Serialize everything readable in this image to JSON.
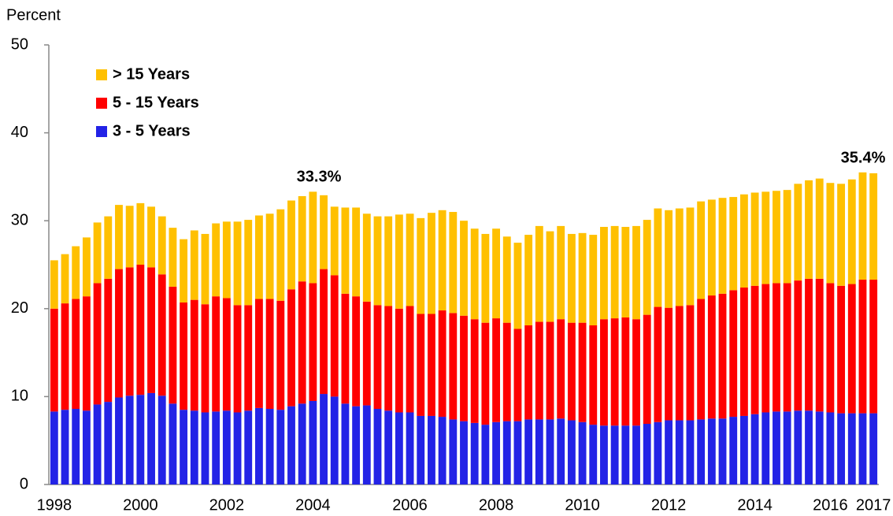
{
  "chart_data": {
    "type": "stacked_bar",
    "y_label": "Percent",
    "annotations": [
      "33.3%",
      "35.4%"
    ],
    "categories": [
      "1998",
      null,
      null,
      null,
      null,
      null,
      null,
      null,
      "2000",
      null,
      null,
      null,
      null,
      null,
      null,
      null,
      "2002",
      null,
      null,
      null,
      null,
      null,
      null,
      null,
      "2004",
      null,
      null,
      null,
      null,
      null,
      null,
      null,
      null,
      "2006",
      null,
      null,
      null,
      null,
      null,
      null,
      null,
      "2008",
      null,
      null,
      null,
      null,
      null,
      null,
      null,
      "2010",
      null,
      null,
      null,
      null,
      null,
      null,
      null,
      "2012",
      null,
      null,
      null,
      null,
      null,
      null,
      null,
      "2014",
      null,
      null,
      null,
      null,
      null,
      null,
      "2016",
      null,
      null,
      null,
      "2017"
    ],
    "series": [
      {
        "name": "3 - 5 Years",
        "color": "#2323e6",
        "values": [
          8.3,
          8.5,
          8.6,
          8.4,
          9.1,
          9.4,
          9.9,
          10.1,
          10.2,
          10.4,
          10.1,
          9.2,
          8.5,
          8.4,
          8.2,
          8.3,
          8.4,
          8.2,
          8.4,
          8.7,
          8.6,
          8.5,
          8.9,
          9.2,
          9.5,
          10.3,
          10.0,
          9.2,
          8.9,
          9.0,
          8.6,
          8.4,
          8.2,
          8.2,
          7.8,
          7.8,
          7.7,
          7.4,
          7.2,
          7.0,
          6.8,
          7.1,
          7.2,
          7.2,
          7.4,
          7.4,
          7.4,
          7.5,
          7.3,
          7.1,
          6.8,
          6.7,
          6.7,
          6.7,
          6.7,
          6.9,
          7.1,
          7.3,
          7.3,
          7.3,
          7.4,
          7.5,
          7.5,
          7.7,
          7.8,
          8.0,
          8.2,
          8.3,
          8.3,
          8.4,
          8.4,
          8.3,
          8.2,
          8.1,
          8.1,
          8.1,
          8.1
        ]
      },
      {
        "name": "5 - 15 Years",
        "color": "#ff0000",
        "values": [
          11.7,
          12.1,
          12.5,
          13.0,
          13.8,
          14.0,
          14.6,
          14.6,
          14.8,
          14.3,
          13.8,
          13.3,
          12.2,
          12.6,
          12.3,
          13.1,
          12.8,
          12.2,
          12.0,
          12.4,
          12.5,
          12.4,
          13.3,
          13.9,
          13.4,
          14.2,
          13.8,
          12.5,
          12.5,
          11.8,
          11.8,
          11.9,
          11.8,
          12.1,
          11.6,
          11.6,
          12.1,
          12.1,
          12.0,
          11.8,
          11.6,
          11.8,
          11.2,
          10.5,
          10.7,
          11.1,
          11.1,
          11.3,
          11.1,
          11.3,
          11.3,
          12.1,
          12.2,
          12.3,
          12.1,
          12.4,
          13.1,
          12.8,
          13.0,
          13.1,
          13.7,
          14.0,
          14.2,
          14.4,
          14.6,
          14.6,
          14.6,
          14.6,
          14.6,
          14.8,
          15.0,
          15.1,
          14.7,
          14.5,
          14.7,
          15.2,
          15.2
        ]
      },
      {
        "name": "> 15 Years",
        "color": "#ffc000",
        "values": [
          5.5,
          5.6,
          6.0,
          6.7,
          6.9,
          7.1,
          7.3,
          7.0,
          7.0,
          6.9,
          6.6,
          6.7,
          7.2,
          7.9,
          8.0,
          8.3,
          8.7,
          9.5,
          9.7,
          9.5,
          9.7,
          10.4,
          10.1,
          9.7,
          10.4,
          8.4,
          7.8,
          9.8,
          10.1,
          10.0,
          10.1,
          10.2,
          10.7,
          10.5,
          10.9,
          11.5,
          11.4,
          11.5,
          10.8,
          10.3,
          10.1,
          10.2,
          9.8,
          9.8,
          10.3,
          10.9,
          10.3,
          10.6,
          10.1,
          10.2,
          10.3,
          10.5,
          10.5,
          10.3,
          10.6,
          10.8,
          11.2,
          11.1,
          11.1,
          11.1,
          11.1,
          10.9,
          10.9,
          10.6,
          10.6,
          10.6,
          10.5,
          10.5,
          10.6,
          11.0,
          11.2,
          11.4,
          11.4,
          11.6,
          11.9,
          12.2,
          12.1
        ]
      }
    ],
    "ylim": [
      0,
      50
    ],
    "yticks": [
      0,
      10,
      20,
      30,
      40,
      50
    ]
  }
}
